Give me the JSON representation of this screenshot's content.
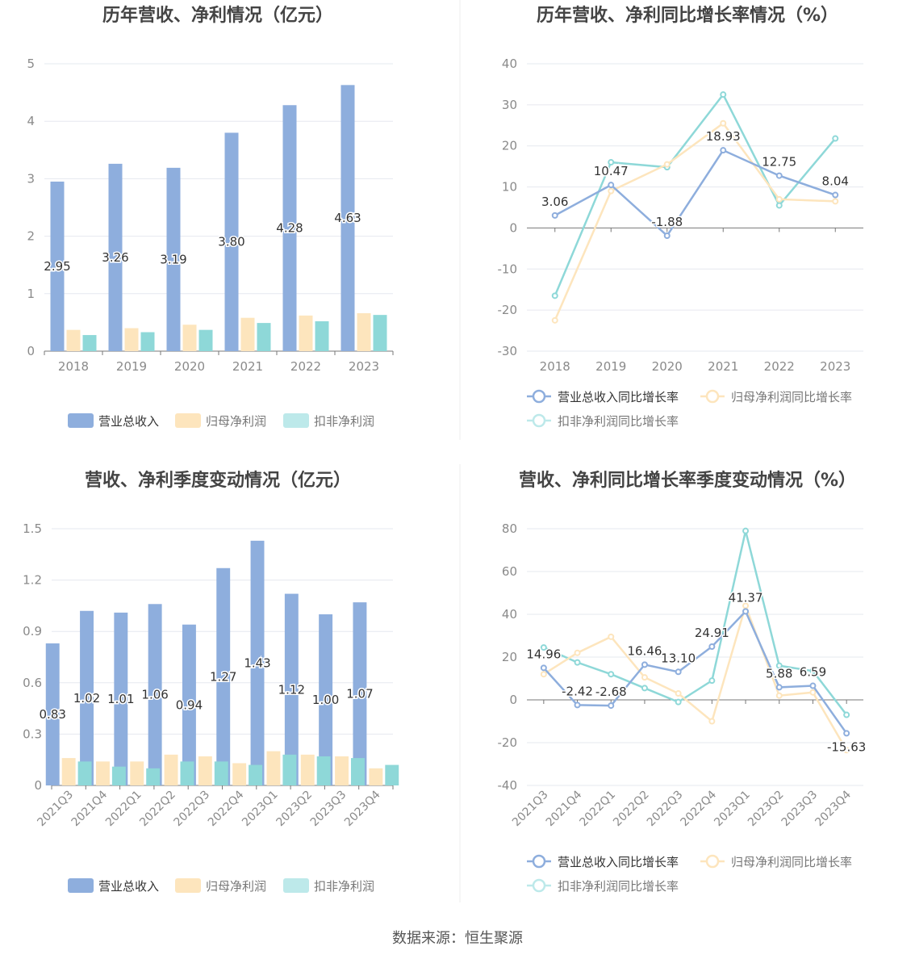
{
  "colors": {
    "revenue": "#8eaedd",
    "net_profit": "#fde5bd",
    "deducted_profit": "#8ed8d8",
    "deducted_profit_legend": "#bde9ea",
    "grid": "#e6e8ef",
    "axis": "#777777",
    "tick": "#8a8a8a",
    "title": "#444444",
    "label": "#333333"
  },
  "source_text": "数据来源：恒生聚源",
  "chart_data": [
    {
      "id": "annual-bar",
      "type": "bar",
      "title": "历年营收、净利情况（亿元）",
      "categories": [
        "2018",
        "2019",
        "2020",
        "2021",
        "2022",
        "2023"
      ],
      "ylim": [
        0,
        5
      ],
      "yticks": [
        0,
        1,
        2,
        3,
        4,
        5
      ],
      "ytick_labels": [
        "0",
        "1",
        "2",
        "3",
        "4",
        "5"
      ],
      "series": [
        {
          "name": "营业总收入",
          "values": [
            2.95,
            3.26,
            3.19,
            3.8,
            4.28,
            4.63
          ],
          "labels": [
            "2.95",
            "3.26",
            "3.19",
            "3.80",
            "4.28",
            "4.63"
          ]
        },
        {
          "name": "归母净利润",
          "values": [
            0.37,
            0.4,
            0.46,
            0.58,
            0.62,
            0.66
          ]
        },
        {
          "name": "扣非净利润",
          "values": [
            0.28,
            0.33,
            0.37,
            0.49,
            0.52,
            0.63
          ]
        }
      ]
    },
    {
      "id": "annual-line",
      "type": "line",
      "title": "历年营收、净利同比增长率情况（%）",
      "categories": [
        "2018",
        "2019",
        "2020",
        "2021",
        "2022",
        "2023"
      ],
      "ylim": [
        -30,
        40
      ],
      "yticks": [
        -30,
        -20,
        -10,
        0,
        10,
        20,
        30,
        40
      ],
      "ytick_labels": [
        "-30",
        "-20",
        "-10",
        "0",
        "10",
        "20",
        "30",
        "40"
      ],
      "series": [
        {
          "name": "营业总收入同比增长率",
          "values": [
            3.06,
            10.47,
            -1.88,
            18.93,
            12.75,
            8.04
          ],
          "labels": [
            "3.06",
            "10.47",
            "-1.88",
            "18.93",
            "12.75",
            "8.04"
          ]
        },
        {
          "name": "归母净利润同比增长率",
          "values": [
            -22.5,
            9.0,
            15.5,
            25.5,
            7.0,
            6.5
          ]
        },
        {
          "name": "扣非净利润同比增长率",
          "values": [
            -16.5,
            16.0,
            14.8,
            32.5,
            5.5,
            21.8
          ]
        }
      ]
    },
    {
      "id": "quarterly-bar",
      "type": "bar",
      "title": "营收、净利季度变动情况（亿元）",
      "categories": [
        "2021Q3",
        "2021Q4",
        "2022Q1",
        "2022Q2",
        "2022Q3",
        "2022Q4",
        "2023Q1",
        "2023Q2",
        "2023Q3",
        "2023Q4"
      ],
      "ylim": [
        0,
        1.5
      ],
      "yticks": [
        0,
        0.3,
        0.6,
        0.9,
        1.2,
        1.5
      ],
      "ytick_labels": [
        "0",
        "0.3",
        "0.6",
        "0.9",
        "1.2",
        "1.5"
      ],
      "series": [
        {
          "name": "营业总收入",
          "values": [
            0.83,
            1.02,
            1.01,
            1.06,
            0.94,
            1.27,
            1.43,
            1.12,
            1.0,
            1.07
          ],
          "labels": [
            "0.83",
            "1.02",
            "1.01",
            "1.06",
            "0.94",
            "1.27",
            "1.43",
            "1.12",
            "1.00",
            "1.07"
          ]
        },
        {
          "name": "归母净利润",
          "values": [
            0.16,
            0.14,
            0.14,
            0.18,
            0.17,
            0.13,
            0.2,
            0.18,
            0.17,
            0.1
          ]
        },
        {
          "name": "扣非净利润",
          "values": [
            0.14,
            0.11,
            0.1,
            0.14,
            0.14,
            0.12,
            0.18,
            0.17,
            0.16,
            0.12
          ]
        }
      ]
    },
    {
      "id": "quarterly-line",
      "type": "line",
      "title": "营收、净利同比增长率季度变动情况（%）",
      "categories": [
        "2021Q3",
        "2021Q4",
        "2022Q1",
        "2022Q2",
        "2022Q3",
        "2022Q4",
        "2023Q1",
        "2023Q2",
        "2023Q3",
        "2023Q4"
      ],
      "ylim": [
        -40,
        80
      ],
      "yticks": [
        -40,
        -20,
        0,
        20,
        40,
        60,
        80
      ],
      "ytick_labels": [
        "-40",
        "-20",
        "0",
        "20",
        "40",
        "60",
        "80"
      ],
      "series": [
        {
          "name": "营业总收入同比增长率",
          "values": [
            14.96,
            -2.42,
            -2.68,
            16.46,
            13.1,
            24.91,
            41.37,
            5.88,
            6.59,
            -15.63
          ],
          "labels": [
            "14.96",
            "-2.42",
            "-2.68",
            "16.46",
            "13.10",
            "24.91",
            "41.37",
            "5.88",
            "6.59",
            "-15.63"
          ]
        },
        {
          "name": "归母净利润同比增长率",
          "values": [
            12.0,
            22.0,
            29.5,
            10.5,
            3.0,
            -10.0,
            44.0,
            2.0,
            3.5,
            -23.5
          ]
        },
        {
          "name": "扣非净利润同比增长率",
          "values": [
            24.5,
            17.5,
            12.0,
            5.5,
            -1.0,
            9.0,
            79.0,
            16.0,
            13.5,
            -7.0
          ]
        }
      ]
    }
  ]
}
